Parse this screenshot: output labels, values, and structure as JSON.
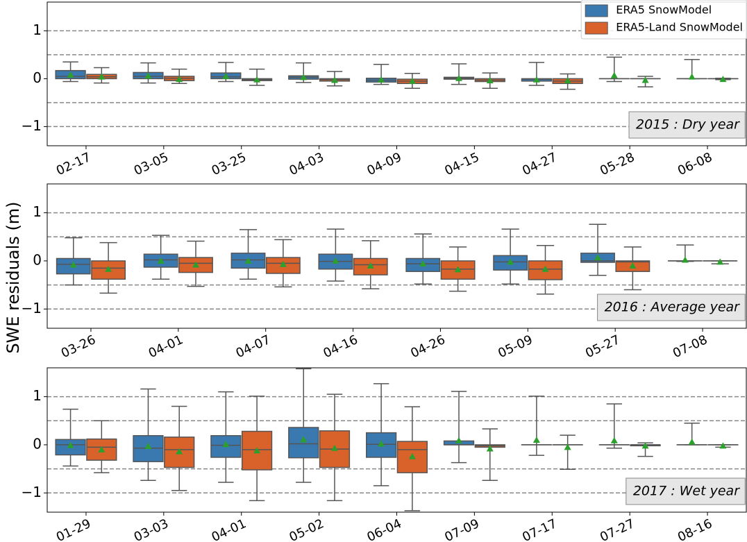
{
  "chart_data": [
    {
      "type": "box",
      "annotation": "2015 : Dry year",
      "legend": "upper right",
      "categories": [
        "02-17",
        "03-05",
        "03-25",
        "04-03",
        "04-09",
        "04-15",
        "04-27",
        "05-28",
        "06-08"
      ],
      "ylim": [
        -1.4,
        1.6
      ],
      "yticks": [
        {
          "value": -1,
          "label": "−1"
        },
        0,
        1
      ],
      "hlines": [
        -1,
        -0.5,
        0.5,
        1
      ],
      "series": [
        {
          "name": "ERA5 SnowModel",
          "color": "#3a78b0",
          "values": [
            {
              "whislo": -0.06,
              "q1": 0.0,
              "med": 0.05,
              "q3": 0.17,
              "whishi": 0.35,
              "mean": 0.08
            },
            {
              "whislo": -0.09,
              "q1": 0.0,
              "med": 0.05,
              "q3": 0.13,
              "whishi": 0.33,
              "mean": 0.06
            },
            {
              "whislo": -0.06,
              "q1": 0.0,
              "med": 0.04,
              "q3": 0.12,
              "whishi": 0.34,
              "mean": 0.05
            },
            {
              "whislo": -0.08,
              "q1": -0.01,
              "med": 0.03,
              "q3": 0.06,
              "whishi": 0.33,
              "mean": 0.03
            },
            {
              "whislo": -0.12,
              "q1": -0.07,
              "med": -0.03,
              "q3": 0.01,
              "whishi": 0.3,
              "mean": -0.02
            },
            {
              "whislo": -0.12,
              "q1": -0.01,
              "med": 0.01,
              "q3": 0.03,
              "whishi": 0.31,
              "mean": 0.01
            },
            {
              "whislo": -0.14,
              "q1": -0.05,
              "med": -0.01,
              "q3": 0.0,
              "whishi": 0.34,
              "mean": -0.02
            },
            {
              "whislo": -0.06,
              "q1": 0.0,
              "med": 0.0,
              "q3": 0.0,
              "whishi": 0.45,
              "mean": 0.07
            },
            {
              "whislo": 0.0,
              "q1": 0.0,
              "med": 0.0,
              "q3": 0.0,
              "whishi": 0.4,
              "mean": 0.04
            }
          ]
        },
        {
          "name": "ERA5-Land SnowModel",
          "color": "#d9612a",
          "values": [
            {
              "whislo": -0.09,
              "q1": 0.0,
              "med": 0.04,
              "q3": 0.09,
              "whishi": 0.23,
              "mean": 0.04
            },
            {
              "whislo": -0.1,
              "q1": -0.04,
              "med": 0.01,
              "q3": 0.05,
              "whishi": 0.2,
              "mean": -0.01
            },
            {
              "whislo": -0.14,
              "q1": -0.04,
              "med": -0.02,
              "q3": 0.0,
              "whishi": 0.2,
              "mean": -0.02
            },
            {
              "whislo": -0.15,
              "q1": -0.05,
              "med": -0.02,
              "q3": 0.0,
              "whishi": 0.15,
              "mean": -0.03
            },
            {
              "whislo": -0.2,
              "q1": -0.1,
              "med": -0.05,
              "q3": -0.01,
              "whishi": 0.11,
              "mean": -0.05
            },
            {
              "whislo": -0.2,
              "q1": -0.06,
              "med": -0.03,
              "q3": 0.0,
              "whishi": 0.12,
              "mean": -0.04
            },
            {
              "whislo": -0.22,
              "q1": -0.1,
              "med": -0.05,
              "q3": 0.0,
              "whishi": 0.1,
              "mean": -0.04
            },
            {
              "whislo": -0.17,
              "q1": 0.0,
              "med": 0.0,
              "q3": 0.0,
              "whishi": 0.05,
              "mean": -0.03
            },
            {
              "whislo": -0.02,
              "q1": 0.0,
              "med": 0.0,
              "q3": 0.0,
              "whishi": 0.01,
              "mean": -0.01
            }
          ]
        }
      ]
    },
    {
      "type": "box",
      "annotation": "2016 : Average year",
      "ylabel": "SWE residuals (m)",
      "categories": [
        "03-26",
        "04-01",
        "04-07",
        "04-16",
        "04-26",
        "05-09",
        "05-27",
        "07-08"
      ],
      "ylim": [
        -1.4,
        1.6
      ],
      "yticks": [
        {
          "value": -1,
          "label": "−1"
        },
        0,
        1
      ],
      "hlines": [
        -1,
        -0.5,
        0.5,
        1
      ],
      "series": [
        {
          "color": "#3a78b0",
          "values": [
            {
              "whislo": -0.5,
              "q1": -0.27,
              "med": -0.07,
              "q3": 0.05,
              "whishi": 0.48,
              "mean": -0.08
            },
            {
              "whislo": -0.38,
              "q1": -0.13,
              "med": 0.02,
              "q3": 0.14,
              "whishi": 0.53,
              "mean": 0.0
            },
            {
              "whislo": -0.38,
              "q1": -0.15,
              "med": 0.02,
              "q3": 0.16,
              "whishi": 0.65,
              "mean": 0.0
            },
            {
              "whislo": -0.42,
              "q1": -0.17,
              "med": -0.01,
              "q3": 0.14,
              "whishi": 0.66,
              "mean": 0.0
            },
            {
              "whislo": -0.48,
              "q1": -0.22,
              "med": -0.06,
              "q3": 0.05,
              "whishi": 0.56,
              "mean": -0.06
            },
            {
              "whislo": -0.48,
              "q1": -0.19,
              "med": -0.02,
              "q3": 0.11,
              "whishi": 0.66,
              "mean": -0.02
            },
            {
              "whislo": -0.3,
              "q1": -0.03,
              "med": 0.0,
              "q3": 0.16,
              "whishi": 0.76,
              "mean": 0.07
            },
            {
              "whislo": -0.01,
              "q1": 0.0,
              "med": 0.0,
              "q3": 0.0,
              "whishi": 0.33,
              "mean": 0.02
            }
          ]
        },
        {
          "color": "#d9612a",
          "values": [
            {
              "whislo": -0.67,
              "q1": -0.38,
              "med": -0.15,
              "q3": 0.0,
              "whishi": 0.38,
              "mean": -0.17
            },
            {
              "whislo": -0.53,
              "q1": -0.24,
              "med": -0.05,
              "q3": 0.07,
              "whishi": 0.41,
              "mean": -0.08
            },
            {
              "whislo": -0.54,
              "q1": -0.26,
              "med": -0.05,
              "q3": 0.07,
              "whishi": 0.44,
              "mean": -0.07
            },
            {
              "whislo": -0.58,
              "q1": -0.29,
              "med": -0.08,
              "q3": 0.05,
              "whishi": 0.42,
              "mean": -0.1
            },
            {
              "whislo": -0.63,
              "q1": -0.38,
              "med": -0.17,
              "q3": 0.0,
              "whishi": 0.29,
              "mean": -0.18
            },
            {
              "whislo": -0.69,
              "q1": -0.39,
              "med": -0.17,
              "q3": 0.0,
              "whishi": 0.32,
              "mean": -0.17
            },
            {
              "whislo": -0.6,
              "q1": -0.22,
              "med": -0.02,
              "q3": 0.0,
              "whishi": 0.29,
              "mean": -0.1
            },
            {
              "whislo": -0.06,
              "q1": 0.0,
              "med": 0.0,
              "q3": 0.0,
              "whishi": 0.0,
              "mean": -0.02
            }
          ]
        }
      ]
    },
    {
      "type": "box",
      "annotation": "2017 : Wet year",
      "categories": [
        "01-29",
        "03-03",
        "04-01",
        "05-02",
        "06-04",
        "07-09",
        "07-17",
        "07-27",
        "08-16"
      ],
      "ylim": [
        -1.4,
        1.6
      ],
      "yticks": [
        {
          "value": -1,
          "label": "−1"
        },
        0,
        1
      ],
      "hlines": [
        -1,
        -0.5,
        0.5,
        1
      ],
      "series": [
        {
          "color": "#3a78b0",
          "values": [
            {
              "whislo": -0.44,
              "q1": -0.21,
              "med": 0.0,
              "q3": 0.11,
              "whishi": 0.74,
              "mean": -0.01
            },
            {
              "whislo": -0.74,
              "q1": -0.35,
              "med": -0.07,
              "q3": 0.19,
              "whishi": 1.16,
              "mean": -0.03
            },
            {
              "whislo": -0.78,
              "q1": -0.26,
              "med": -0.01,
              "q3": 0.19,
              "whishi": 1.1,
              "mean": 0.01
            },
            {
              "whislo": -0.78,
              "q1": -0.27,
              "med": 0.02,
              "q3": 0.36,
              "whishi": 1.58,
              "mean": 0.11
            },
            {
              "whislo": -0.85,
              "q1": -0.26,
              "med": 0.01,
              "q3": 0.25,
              "whishi": 1.27,
              "mean": 0.02
            },
            {
              "whislo": -0.37,
              "q1": 0.0,
              "med": 0.0,
              "q3": 0.08,
              "whishi": 1.11,
              "mean": 0.09
            },
            {
              "whislo": -0.22,
              "q1": 0.0,
              "med": 0.0,
              "q3": 0.0,
              "whishi": 1.01,
              "mean": 0.1
            },
            {
              "whislo": -0.07,
              "q1": 0.0,
              "med": 0.0,
              "q3": 0.0,
              "whishi": 0.85,
              "mean": 0.09
            },
            {
              "whislo": 0.0,
              "q1": 0.0,
              "med": 0.0,
              "q3": 0.0,
              "whishi": 0.45,
              "mean": 0.06
            }
          ]
        },
        {
          "color": "#d9612a",
          "values": [
            {
              "whislo": -0.58,
              "q1": -0.32,
              "med": -0.05,
              "q3": 0.12,
              "whishi": 0.5,
              "mean": -0.1
            },
            {
              "whislo": -0.95,
              "q1": -0.47,
              "med": -0.1,
              "q3": 0.16,
              "whishi": 0.8,
              "mean": -0.14
            },
            {
              "whislo": -1.16,
              "q1": -0.52,
              "med": -0.1,
              "q3": 0.28,
              "whishi": 1.01,
              "mean": -0.12
            },
            {
              "whislo": -1.16,
              "q1": -0.47,
              "med": -0.09,
              "q3": 0.29,
              "whishi": 1.05,
              "mean": -0.07
            },
            {
              "whislo": -1.37,
              "q1": -0.58,
              "med": -0.1,
              "q3": 0.07,
              "whishi": 0.79,
              "mean": -0.24
            },
            {
              "whislo": -0.74,
              "q1": -0.05,
              "med": -0.02,
              "q3": 0.0,
              "whishi": 0.33,
              "mean": -0.08
            },
            {
              "whislo": -0.51,
              "q1": 0.0,
              "med": 0.0,
              "q3": 0.0,
              "whishi": 0.2,
              "mean": -0.05
            },
            {
              "whislo": -0.24,
              "q1": -0.02,
              "med": 0.0,
              "q3": 0.0,
              "whishi": 0.04,
              "mean": -0.02
            },
            {
              "whislo": -0.05,
              "q1": 0.0,
              "med": 0.0,
              "q3": 0.0,
              "whishi": 0.0,
              "mean": -0.02
            }
          ]
        }
      ]
    }
  ]
}
